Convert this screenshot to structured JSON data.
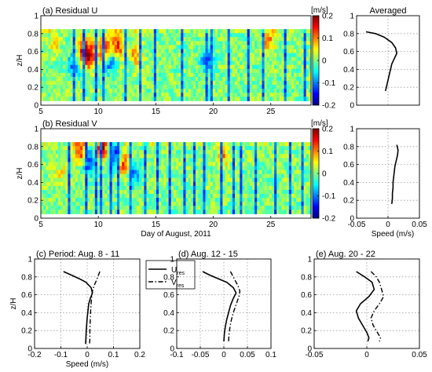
{
  "colormap": [
    "#00007f",
    "#0000ff",
    "#007fff",
    "#00ffff",
    "#7fff7f",
    "#ffff00",
    "#ff7f00",
    "#ff0000",
    "#7f0000"
  ],
  "chart_data": [
    {
      "type": "heatmap",
      "title": "(a) Residual U",
      "xlabel": "",
      "ylabel": "z/H",
      "xlim": [
        5,
        28.5
      ],
      "ylim": [
        0,
        1
      ],
      "x_ticks": [
        5,
        10,
        15,
        20,
        25
      ],
      "y_ticks": [
        0,
        0.2,
        0.4,
        0.6,
        0.8,
        1
      ],
      "y_tick_labels": [
        "0",
        "0.2",
        "0.4",
        "0.6",
        "0.8",
        "1"
      ],
      "data_extent": {
        "x": [
          5,
          28.5
        ],
        "y": [
          0.05,
          0.85
        ]
      },
      "colorbar": {
        "unit": "[m/s]",
        "range": [
          -0.2,
          0.2
        ],
        "ticks": [
          -0.2,
          -0.1,
          0,
          0.1,
          0.2
        ],
        "tick_labels": [
          "-0.2",
          "-0.1",
          "0",
          "0.1",
          "0.2"
        ]
      },
      "features": [
        {
          "x": 8.7,
          "y": 0.6,
          "v": 0.16
        },
        {
          "x": 9.3,
          "y": 0.55,
          "v": 0.14
        },
        {
          "x": 10.6,
          "y": 0.62,
          "v": 0.18
        },
        {
          "x": 11.0,
          "y": 0.5,
          "v": -0.14
        },
        {
          "x": 11.7,
          "y": 0.66,
          "v": 0.13
        },
        {
          "x": 7.9,
          "y": 0.45,
          "v": -0.1
        },
        {
          "x": 13.3,
          "y": 0.58,
          "v": 0.1
        },
        {
          "x": 19.5,
          "y": 0.5,
          "v": -0.12
        },
        {
          "x": 24.8,
          "y": 0.72,
          "v": 0.1
        },
        {
          "x": 6.2,
          "y": 0.7,
          "v": 0.05
        }
      ],
      "dark_columns": [
        7.7,
        8.6,
        9.6,
        10.4,
        12.3,
        13.6,
        14.8,
        17.2,
        19.3,
        19.7,
        21.2,
        22.9,
        24.3,
        26.1,
        27.8
      ]
    },
    {
      "type": "line",
      "title": "Averaged",
      "xlabel": "",
      "ylabel": "",
      "xlim": [
        -0.05,
        0.05
      ],
      "ylim": [
        0,
        1
      ],
      "series": [
        {
          "x": [
            -0.035,
            -0.02,
            -0.006,
            0.006,
            0.012,
            0.014,
            0.01,
            0.006,
            0.004,
            0.002,
            0.0,
            -0.002,
            -0.004
          ],
          "y": [
            0.82,
            0.8,
            0.76,
            0.7,
            0.64,
            0.58,
            0.52,
            0.46,
            0.4,
            0.34,
            0.28,
            0.22,
            0.16
          ]
        }
      ]
    },
    {
      "type": "heatmap",
      "title": "(b) Residual V",
      "xlabel": "Day of August, 2011",
      "ylabel": "z/H",
      "xlim": [
        5,
        28.5
      ],
      "ylim": [
        0,
        1
      ],
      "x_ticks": [
        5,
        10,
        15,
        20,
        25
      ],
      "y_ticks": [
        0,
        0.2,
        0.4,
        0.6,
        0.8,
        1
      ],
      "y_tick_labels": [
        "0",
        "0.2",
        "0.4",
        "0.6",
        "0.8",
        "1"
      ],
      "data_extent": {
        "x": [
          5,
          28.5
        ],
        "y": [
          0.05,
          0.85
        ]
      },
      "colorbar": {
        "unit": "[m/s]",
        "range": [
          -0.2,
          0.2
        ],
        "ticks": [
          -0.2,
          -0.1,
          0,
          0.1,
          0.2
        ],
        "tick_labels": [
          "-0.2",
          "-0.1",
          "0",
          "0.1",
          "0.2"
        ]
      },
      "features": [
        {
          "x": 8.5,
          "y": 0.75,
          "v": 0.15
        },
        {
          "x": 9.2,
          "y": 0.65,
          "v": -0.16
        },
        {
          "x": 10.3,
          "y": 0.78,
          "v": 0.18
        },
        {
          "x": 11.4,
          "y": 0.7,
          "v": -0.15
        },
        {
          "x": 12.2,
          "y": 0.6,
          "v": 0.13
        },
        {
          "x": 13.1,
          "y": 0.5,
          "v": -0.1
        },
        {
          "x": 20.8,
          "y": 0.72,
          "v": 0.1
        },
        {
          "x": 6.8,
          "y": 0.5,
          "v": 0.05
        }
      ],
      "dark_columns": [
        7.3,
        8.9,
        9.7,
        10.2,
        10.9,
        11.7,
        12.6,
        13.9,
        15.1,
        16.2,
        17.4,
        18.3,
        19.2,
        20.5,
        21.6,
        22.4,
        23.6,
        25.2,
        26.5,
        27.6
      ]
    },
    {
      "type": "line",
      "title": "",
      "xlabel": "Speed (m/s)",
      "ylabel": "",
      "xlim": [
        -0.05,
        0.05
      ],
      "ylim": [
        0,
        1
      ],
      "x_ticks": [
        -0.05,
        0,
        0.05
      ],
      "x_tick_labels": [
        "-0.05",
        "0",
        "0.05"
      ],
      "series": [
        {
          "x": [
            0.014,
            0.016,
            0.015,
            0.013,
            0.011,
            0.01,
            0.009,
            0.008,
            0.008,
            0.007,
            0.007,
            0.006
          ],
          "y": [
            0.82,
            0.76,
            0.7,
            0.64,
            0.58,
            0.52,
            0.46,
            0.4,
            0.34,
            0.28,
            0.22,
            0.16
          ]
        }
      ]
    },
    {
      "type": "line",
      "title": "(c) Period: Aug. 8 - 11",
      "xlabel": "Speed (m/s)",
      "ylabel": "z/H",
      "xlim": [
        -0.2,
        0.2
      ],
      "ylim": [
        0,
        1
      ],
      "x_ticks": [
        -0.2,
        -0.1,
        0,
        0.1,
        0.2
      ],
      "x_tick_labels": [
        "-0.2",
        "-0.1",
        "0",
        "0.1",
        "0.2"
      ],
      "y_ticks": [
        0,
        0.2,
        0.4,
        0.6,
        0.8,
        1
      ],
      "y_tick_labels": [
        "0",
        "0.2",
        "0.4",
        "0.6",
        "0.8",
        "1"
      ],
      "legend": {
        "placement": "right",
        "entries": [
          {
            "main": "U",
            "sub": "res",
            "style": "solid"
          },
          {
            "main": "V",
            "sub": "res",
            "style": "dashdot"
          }
        ]
      },
      "series": [
        {
          "style": "solid",
          "x": [
            -0.09,
            -0.06,
            -0.03,
            -0.005,
            0.015,
            0.02,
            0.012,
            0.006,
            0.003,
            0.0,
            -0.002,
            -0.004,
            -0.005,
            -0.006
          ],
          "y": [
            0.86,
            0.82,
            0.78,
            0.74,
            0.68,
            0.62,
            0.56,
            0.5,
            0.42,
            0.34,
            0.26,
            0.18,
            0.1,
            0.05
          ]
        },
        {
          "style": "dashdot",
          "x": [
            0.048,
            0.043,
            0.035,
            0.026,
            0.02,
            0.017,
            0.015,
            0.013,
            0.012,
            0.011,
            0.01,
            0.01,
            0.009
          ],
          "y": [
            0.86,
            0.82,
            0.76,
            0.7,
            0.64,
            0.58,
            0.5,
            0.42,
            0.34,
            0.26,
            0.18,
            0.1,
            0.05
          ]
        }
      ]
    },
    {
      "type": "line",
      "title": "(d) Aug. 12 - 15",
      "xlabel": "",
      "ylabel": "",
      "xlim": [
        -0.1,
        0.1
      ],
      "ylim": [
        0,
        1
      ],
      "x_ticks": [
        -0.1,
        -0.05,
        0,
        0.05,
        0.1
      ],
      "x_tick_labels": [
        "-0.1",
        "-0.05",
        "0",
        "0.05",
        "0.1"
      ],
      "series": [
        {
          "style": "solid",
          "x": [
            -0.045,
            -0.03,
            -0.012,
            0.006,
            0.02,
            0.026,
            0.02,
            0.014,
            0.01,
            0.006,
            0.003,
            0.001,
            0.0
          ],
          "y": [
            0.86,
            0.82,
            0.78,
            0.74,
            0.68,
            0.62,
            0.56,
            0.48,
            0.4,
            0.32,
            0.24,
            0.16,
            0.08
          ]
        },
        {
          "style": "dashdot",
          "x": [
            0.014,
            0.018,
            0.024,
            0.03,
            0.034,
            0.032,
            0.028,
            0.024,
            0.02,
            0.016,
            0.013,
            0.011,
            0.01
          ],
          "y": [
            0.86,
            0.82,
            0.76,
            0.7,
            0.64,
            0.58,
            0.52,
            0.46,
            0.4,
            0.32,
            0.24,
            0.16,
            0.08
          ]
        }
      ]
    },
    {
      "type": "line",
      "title": "(e) Aug. 20 - 22",
      "xlabel": "",
      "ylabel": "",
      "xlim": [
        -0.05,
        0.05
      ],
      "ylim": [
        0,
        1
      ],
      "x_ticks": [
        -0.05,
        0,
        0.05
      ],
      "x_tick_labels": [
        "-0.05",
        "0",
        "0.05"
      ],
      "series": [
        {
          "style": "solid",
          "x": [
            -0.01,
            -0.002,
            0.005,
            0.007,
            0.002,
            -0.006,
            -0.01,
            -0.008,
            -0.004,
            0.0,
            0.002,
            0.001
          ],
          "y": [
            0.86,
            0.8,
            0.74,
            0.66,
            0.58,
            0.5,
            0.42,
            0.34,
            0.26,
            0.18,
            0.12,
            0.08
          ]
        },
        {
          "style": "dashdot",
          "x": [
            0.004,
            0.009,
            0.012,
            0.014,
            0.016,
            0.012,
            0.007,
            0.004,
            0.006,
            0.01,
            0.013,
            0.012
          ],
          "y": [
            0.86,
            0.8,
            0.74,
            0.66,
            0.58,
            0.5,
            0.42,
            0.34,
            0.26,
            0.18,
            0.12,
            0.08
          ]
        }
      ]
    }
  ]
}
